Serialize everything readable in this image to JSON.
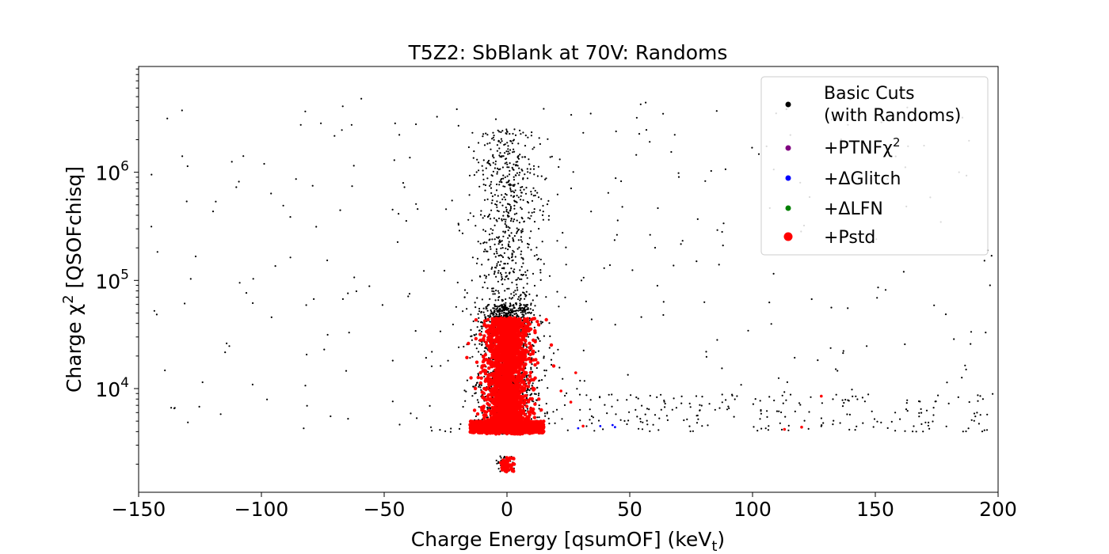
{
  "chart_data": {
    "type": "scatter",
    "title": "T5Z2: SbBlank at 70V: Randoms",
    "xlabel": "Charge Energy [qsumOF] (keV",
    "xlabel_sub": "t",
    "xlabel_end": ")",
    "ylabel": "Charge χ",
    "ylabel_sup": "2",
    "ylabel_end": " [QSOFchisq]",
    "xlim": [
      -150,
      200
    ],
    "ylim": [
      1100,
      9500000
    ],
    "yscale": "log",
    "x_ticks": [
      -150,
      -100,
      -50,
      0,
      50,
      100,
      150,
      200
    ],
    "x_tick_labels": [
      "−150",
      "−100",
      "−50",
      "0",
      "50",
      "100",
      "150",
      "200"
    ],
    "y_ticks": [
      10000,
      100000,
      1000000
    ],
    "y_tick_bases": [
      "10",
      "10",
      "10"
    ],
    "y_tick_exponents": [
      "4",
      "5",
      "6"
    ],
    "grid": false,
    "legend_position": "top-right",
    "series": [
      {
        "name": "Basic Cuts",
        "name_line2": "(with Randoms)",
        "color": "#000000",
        "marker": "dot",
        "clusters": [
          {
            "desc": "core",
            "x_center": 0,
            "x_spread": 8,
            "y_range": [
              3800,
              60000
            ],
            "count": 1800
          },
          {
            "desc": "upper column",
            "x_center": 0,
            "x_spread": 10,
            "y_range": [
              30000,
              2500000
            ],
            "count": 700
          },
          {
            "desc": "wide scatter",
            "x_range": [
              -145,
              198
            ],
            "y_range": [
              4000,
              5000000
            ],
            "count": 300
          },
          {
            "desc": "baseline tail",
            "x_range": [
              15,
              198
            ],
            "y_range": [
              4000,
              9000
            ],
            "count": 220
          },
          {
            "desc": "low blob",
            "x_center": 0,
            "x_spread": 2.5,
            "y_range": [
              1700,
              2400
            ],
            "count": 60
          }
        ]
      },
      {
        "name": "+PTNFχ",
        "name_sup": "2",
        "color": "#800080",
        "marker": "dot",
        "clusters": []
      },
      {
        "name": "+ΔGlitch",
        "color": "#0000ff",
        "marker": "dot",
        "points": [
          [
            29,
            4300
          ],
          [
            38,
            4500
          ],
          [
            43,
            4600
          ],
          [
            44,
            4400
          ]
        ]
      },
      {
        "name": "+ΔLFN",
        "color": "#008000",
        "marker": "dot",
        "clusters": []
      },
      {
        "name": "+Pstd",
        "color": "#ff0000",
        "marker": "dot",
        "clusters": [
          {
            "desc": "red core",
            "x_center": 0,
            "x_spread": 6,
            "y_range": [
              3800,
              45000
            ],
            "count": 2400
          },
          {
            "desc": "red baseline",
            "x_range": [
              -15,
              15
            ],
            "y_range": [
              3900,
              5000
            ],
            "count": 900
          },
          {
            "desc": "red low blob",
            "x_center": 0,
            "x_spread": 2,
            "y_range": [
              1700,
              2300
            ],
            "count": 70
          }
        ],
        "points": [
          [
            22,
            9500
          ],
          [
            26,
            7500
          ],
          [
            28,
            14000
          ],
          [
            31,
            4500
          ],
          [
            128,
            8500
          ],
          [
            113,
            4200
          ],
          [
            120,
            4400
          ]
        ]
      }
    ]
  }
}
